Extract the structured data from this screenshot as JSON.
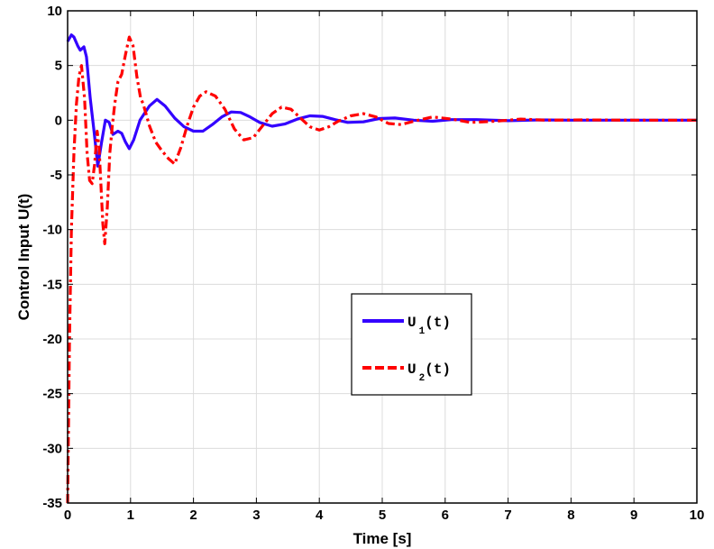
{
  "chart_data": {
    "type": "line",
    "title": "",
    "xlabel": "Time [s]",
    "ylabel": "Control Input U(t)",
    "xlim": [
      0,
      10
    ],
    "ylim": [
      -35,
      10
    ],
    "xticks": [
      0,
      1,
      2,
      3,
      4,
      5,
      6,
      7,
      8,
      9,
      10
    ],
    "yticks": [
      10,
      5,
      0,
      -5,
      -10,
      -15,
      -20,
      -25,
      -30,
      -35
    ],
    "grid": true,
    "legend_position": "center-right",
    "series": [
      {
        "name": "U_1(t)",
        "legend_main": "U",
        "legend_sub": "1",
        "legend_tail": "(t)",
        "color": "#3300ff",
        "style": "solid",
        "points": [
          [
            0,
            7.2
          ],
          [
            0.06,
            7.8
          ],
          [
            0.1,
            7.6
          ],
          [
            0.16,
            6.8
          ],
          [
            0.2,
            6.4
          ],
          [
            0.26,
            6.7
          ],
          [
            0.3,
            5.8
          ],
          [
            0.36,
            2
          ],
          [
            0.42,
            -1
          ],
          [
            0.48,
            -4.2
          ],
          [
            0.54,
            -2
          ],
          [
            0.6,
            0
          ],
          [
            0.66,
            -0.2
          ],
          [
            0.72,
            -1.3
          ],
          [
            0.8,
            -1
          ],
          [
            0.86,
            -1.2
          ],
          [
            0.92,
            -2
          ],
          [
            0.98,
            -2.6
          ],
          [
            1.05,
            -1.8
          ],
          [
            1.15,
            0
          ],
          [
            1.3,
            1.3
          ],
          [
            1.42,
            1.9
          ],
          [
            1.55,
            1.3
          ],
          [
            1.7,
            0.2
          ],
          [
            1.85,
            -0.6
          ],
          [
            2.0,
            -1
          ],
          [
            2.15,
            -1
          ],
          [
            2.3,
            -0.4
          ],
          [
            2.45,
            0.3
          ],
          [
            2.6,
            0.75
          ],
          [
            2.75,
            0.7
          ],
          [
            2.9,
            0.3
          ],
          [
            3.05,
            -0.2
          ],
          [
            3.25,
            -0.55
          ],
          [
            3.45,
            -0.35
          ],
          [
            3.65,
            0.1
          ],
          [
            3.85,
            0.4
          ],
          [
            4.05,
            0.35
          ],
          [
            4.25,
            0.05
          ],
          [
            4.45,
            -0.2
          ],
          [
            4.7,
            -0.15
          ],
          [
            4.95,
            0.15
          ],
          [
            5.2,
            0.2
          ],
          [
            5.5,
            0
          ],
          [
            5.8,
            -0.1
          ],
          [
            6.1,
            0.05
          ],
          [
            6.5,
            0.05
          ],
          [
            7,
            -0.05
          ],
          [
            7.5,
            0.03
          ],
          [
            8,
            0
          ],
          [
            9,
            0
          ],
          [
            10,
            0
          ]
        ]
      },
      {
        "name": "U_2(t)",
        "legend_main": "U",
        "legend_sub": "2",
        "legend_tail": "(t)",
        "color": "#ff0000",
        "style": "dashed",
        "points": [
          [
            0,
            -35
          ],
          [
            0.03,
            -20
          ],
          [
            0.06,
            -10
          ],
          [
            0.1,
            -3
          ],
          [
            0.14,
            1.5
          ],
          [
            0.18,
            4
          ],
          [
            0.22,
            5
          ],
          [
            0.27,
            2
          ],
          [
            0.31,
            -3
          ],
          [
            0.35,
            -5.5
          ],
          [
            0.39,
            -5.8
          ],
          [
            0.43,
            -4
          ],
          [
            0.47,
            -1
          ],
          [
            0.5,
            -2.5
          ],
          [
            0.53,
            -6
          ],
          [
            0.56,
            -9.5
          ],
          [
            0.59,
            -11.3
          ],
          [
            0.63,
            -8
          ],
          [
            0.67,
            -3
          ],
          [
            0.71,
            -0.5
          ],
          [
            0.75,
            1.5
          ],
          [
            0.8,
            3.5
          ],
          [
            0.86,
            4.2
          ],
          [
            0.92,
            6
          ],
          [
            0.98,
            7.6
          ],
          [
            1.04,
            6.8
          ],
          [
            1.1,
            4
          ],
          [
            1.16,
            2
          ],
          [
            1.2,
            1.5
          ],
          [
            1.3,
            -0.5
          ],
          [
            1.4,
            -2
          ],
          [
            1.5,
            -2.8
          ],
          [
            1.6,
            -3.5
          ],
          [
            1.7,
            -4
          ],
          [
            1.8,
            -2.5
          ],
          [
            1.9,
            -0.5
          ],
          [
            2.0,
            1.2
          ],
          [
            2.1,
            2.2
          ],
          [
            2.2,
            2.6
          ],
          [
            2.35,
            2.2
          ],
          [
            2.5,
            1
          ],
          [
            2.65,
            -0.8
          ],
          [
            2.8,
            -1.8
          ],
          [
            2.95,
            -1.6
          ],
          [
            3.1,
            -0.5
          ],
          [
            3.25,
            0.6
          ],
          [
            3.4,
            1.2
          ],
          [
            3.55,
            1
          ],
          [
            3.7,
            0.2
          ],
          [
            3.85,
            -0.6
          ],
          [
            4.0,
            -0.9
          ],
          [
            4.15,
            -0.6
          ],
          [
            4.3,
            -0.1
          ],
          [
            4.5,
            0.4
          ],
          [
            4.7,
            0.6
          ],
          [
            4.9,
            0.3
          ],
          [
            5.1,
            -0.3
          ],
          [
            5.3,
            -0.4
          ],
          [
            5.5,
            -0.1
          ],
          [
            5.8,
            0.3
          ],
          [
            6.1,
            0.1
          ],
          [
            6.4,
            -0.2
          ],
          [
            6.8,
            -0.1
          ],
          [
            7.2,
            0.1
          ],
          [
            7.6,
            0
          ],
          [
            8.2,
            0.03
          ],
          [
            9,
            0
          ],
          [
            10,
            0
          ]
        ]
      }
    ]
  }
}
